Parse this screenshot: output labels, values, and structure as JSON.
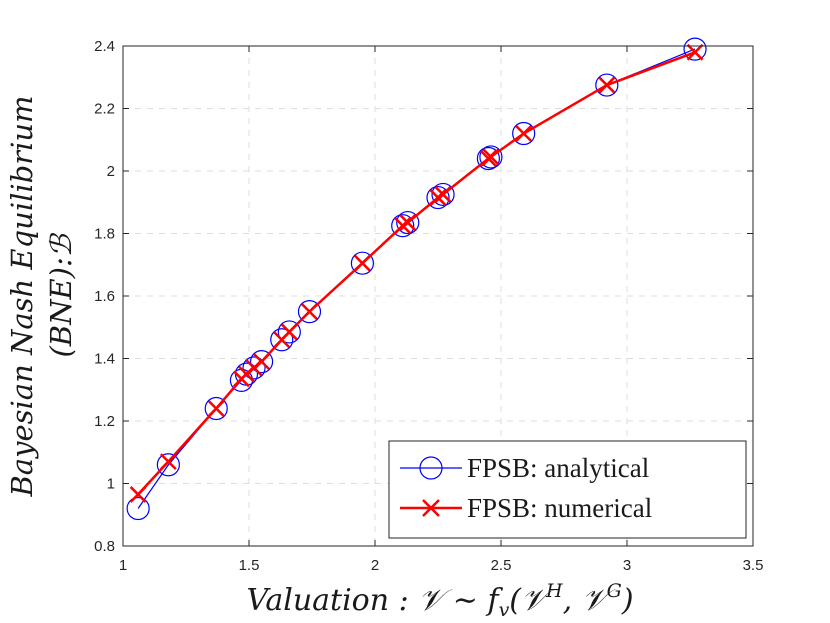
{
  "chart_data": {
    "type": "line",
    "title": "",
    "xlabel": "Valuation : 𝒱 ∼ f",
    "xlabel_sub": "v",
    "xlabel_args": "(𝒱",
    "xlabel_sup1": "H",
    "xlabel_mid": ", 𝒱",
    "xlabel_sup2": "G",
    "xlabel_end": ")",
    "ylabel_line1": "Bayesian Nash Equilibrium",
    "ylabel_line2": "(BNE):ℬ",
    "xlim": [
      1,
      3.5
    ],
    "ylim": [
      0.8,
      2.4
    ],
    "xticks": [
      1,
      1.5,
      2,
      2.5,
      3,
      3.5
    ],
    "xtick_labels": [
      "1",
      "1.5",
      "2",
      "2.5",
      "3",
      "3.5"
    ],
    "yticks": [
      0.8,
      1,
      1.2,
      1.4,
      1.6,
      1.8,
      2,
      2.2,
      2.4
    ],
    "ytick_labels": [
      "0.8",
      "1",
      "1.2",
      "1.4",
      "1.6",
      "1.8",
      "2",
      "2.2",
      "2.4"
    ],
    "grid": true,
    "legend_position": "bottom-right",
    "series": [
      {
        "name": "FPSB: analytical",
        "color": "#0000ff",
        "marker": "circle",
        "x": [
          1.06,
          1.18,
          1.37,
          1.47,
          1.49,
          1.52,
          1.55,
          1.63,
          1.66,
          1.74,
          1.95,
          2.11,
          2.13,
          2.25,
          2.27,
          2.45,
          2.46,
          2.59,
          2.92,
          3.27
        ],
        "y": [
          0.92,
          1.06,
          1.24,
          1.33,
          1.35,
          1.37,
          1.39,
          1.46,
          1.485,
          1.55,
          1.705,
          1.825,
          1.835,
          1.915,
          1.925,
          2.04,
          2.045,
          2.12,
          2.275,
          2.39
        ]
      },
      {
        "name": "FPSB: numerical",
        "color": "#ff0000",
        "marker": "x",
        "x": [
          1.06,
          1.18,
          1.37,
          1.47,
          1.49,
          1.52,
          1.55,
          1.63,
          1.66,
          1.74,
          1.95,
          2.11,
          2.13,
          2.25,
          2.27,
          2.45,
          2.46,
          2.59,
          2.92,
          3.27
        ],
        "y": [
          0.965,
          1.07,
          1.24,
          1.335,
          1.35,
          1.37,
          1.39,
          1.46,
          1.485,
          1.55,
          1.705,
          1.825,
          1.835,
          1.915,
          1.925,
          2.04,
          2.045,
          2.12,
          2.275,
          2.38
        ]
      }
    ]
  }
}
